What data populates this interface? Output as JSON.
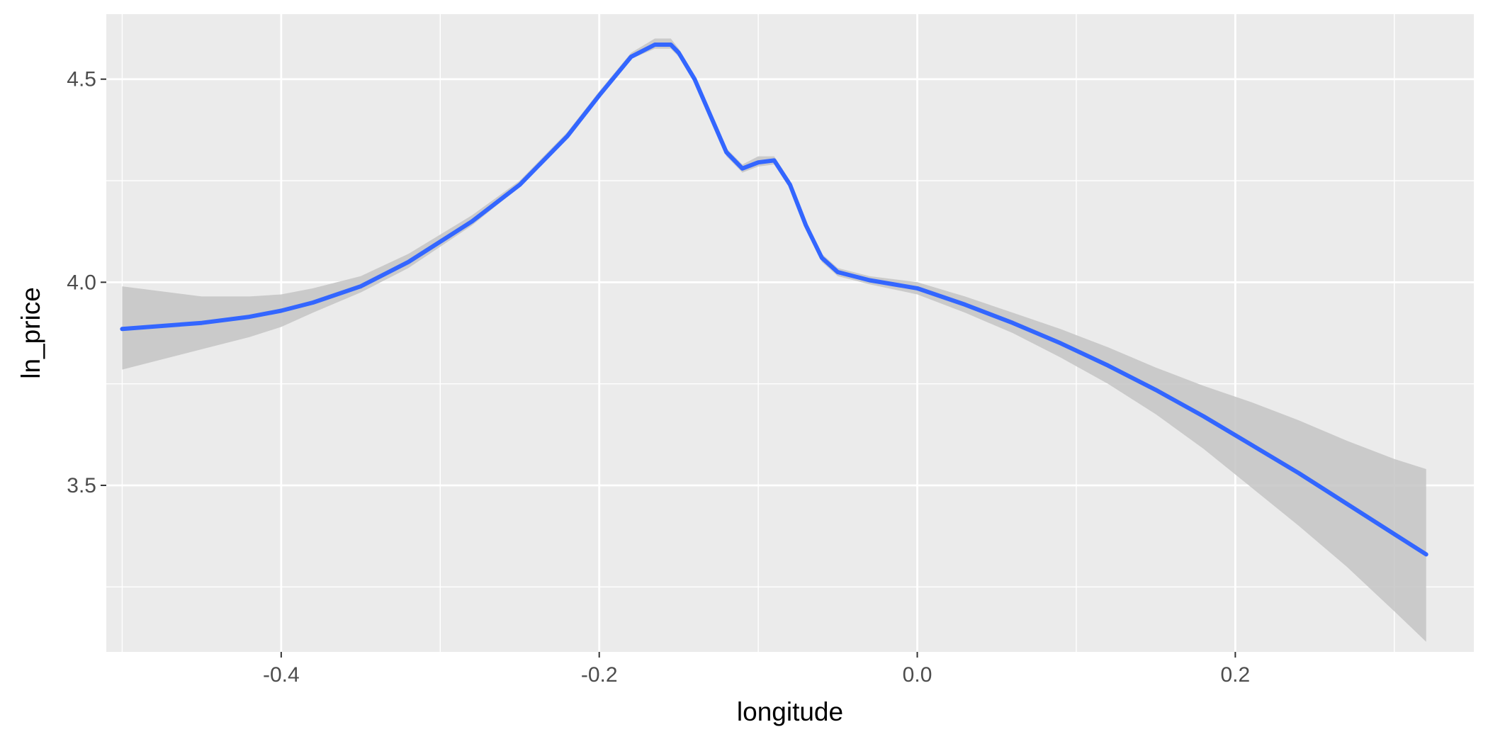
{
  "chart_data": {
    "type": "line",
    "title": "",
    "xlabel": "longitude",
    "ylabel": "ln_price",
    "xlim": [
      -0.51,
      0.35
    ],
    "ylim": [
      3.09,
      4.66
    ],
    "x_major_ticks": [
      -0.4,
      -0.2,
      0.0,
      0.2
    ],
    "x_tick_labels": [
      "-0.4",
      "-0.2",
      "0.0",
      "0.2"
    ],
    "x_minor_ticks": [
      -0.5,
      -0.3,
      -0.1,
      0.1,
      0.3
    ],
    "y_major_ticks": [
      3.5,
      4.0,
      4.5
    ],
    "y_tick_labels": [
      "3.5",
      "4.0",
      "4.5"
    ],
    "y_minor_ticks": [
      3.25,
      3.75,
      4.25
    ],
    "grid": true,
    "legend": "none",
    "colors": {
      "panel_background": "#ebebeb",
      "grid": "#ffffff",
      "line": "#3366ff",
      "ribbon": "#c4c4c4",
      "tick_label": "#4d4d4d",
      "axis_title": "#000000"
    },
    "series": [
      {
        "x": [
          -0.5,
          -0.45,
          -0.42,
          -0.4,
          -0.38,
          -0.35,
          -0.32,
          -0.28,
          -0.25,
          -0.22,
          -0.2,
          -0.18,
          -0.165,
          -0.155,
          -0.15,
          -0.14,
          -0.12,
          -0.11,
          -0.1,
          -0.09,
          -0.08,
          -0.07,
          -0.06,
          -0.05,
          -0.03,
          0.0,
          0.03,
          0.06,
          0.09,
          0.12,
          0.15,
          0.18,
          0.21,
          0.24,
          0.27,
          0.3,
          0.32
        ],
        "y": [
          3.885,
          3.9,
          3.915,
          3.93,
          3.95,
          3.99,
          4.05,
          4.15,
          4.24,
          4.36,
          4.46,
          4.555,
          4.585,
          4.585,
          4.565,
          4.5,
          4.32,
          4.28,
          4.295,
          4.3,
          4.24,
          4.14,
          4.06,
          4.025,
          4.005,
          3.985,
          3.945,
          3.9,
          3.85,
          3.795,
          3.735,
          3.67,
          3.6,
          3.53,
          3.455,
          3.38,
          3.33
        ],
        "lower": [
          3.785,
          3.835,
          3.865,
          3.89,
          3.925,
          3.975,
          4.035,
          4.14,
          4.235,
          4.355,
          4.455,
          4.55,
          4.575,
          4.575,
          4.555,
          4.49,
          4.31,
          4.27,
          4.285,
          4.29,
          4.23,
          4.13,
          4.05,
          4.015,
          3.995,
          3.97,
          3.925,
          3.875,
          3.815,
          3.75,
          3.675,
          3.59,
          3.495,
          3.4,
          3.3,
          3.19,
          3.115
        ],
        "upper": [
          3.99,
          3.965,
          3.965,
          3.97,
          3.985,
          4.015,
          4.07,
          4.165,
          4.25,
          4.37,
          4.47,
          4.565,
          4.6,
          4.6,
          4.575,
          4.51,
          4.33,
          4.29,
          4.31,
          4.31,
          4.25,
          4.15,
          4.07,
          4.035,
          4.015,
          4.0,
          3.965,
          3.925,
          3.885,
          3.84,
          3.79,
          3.745,
          3.705,
          3.66,
          3.61,
          3.565,
          3.54
        ]
      }
    ]
  }
}
